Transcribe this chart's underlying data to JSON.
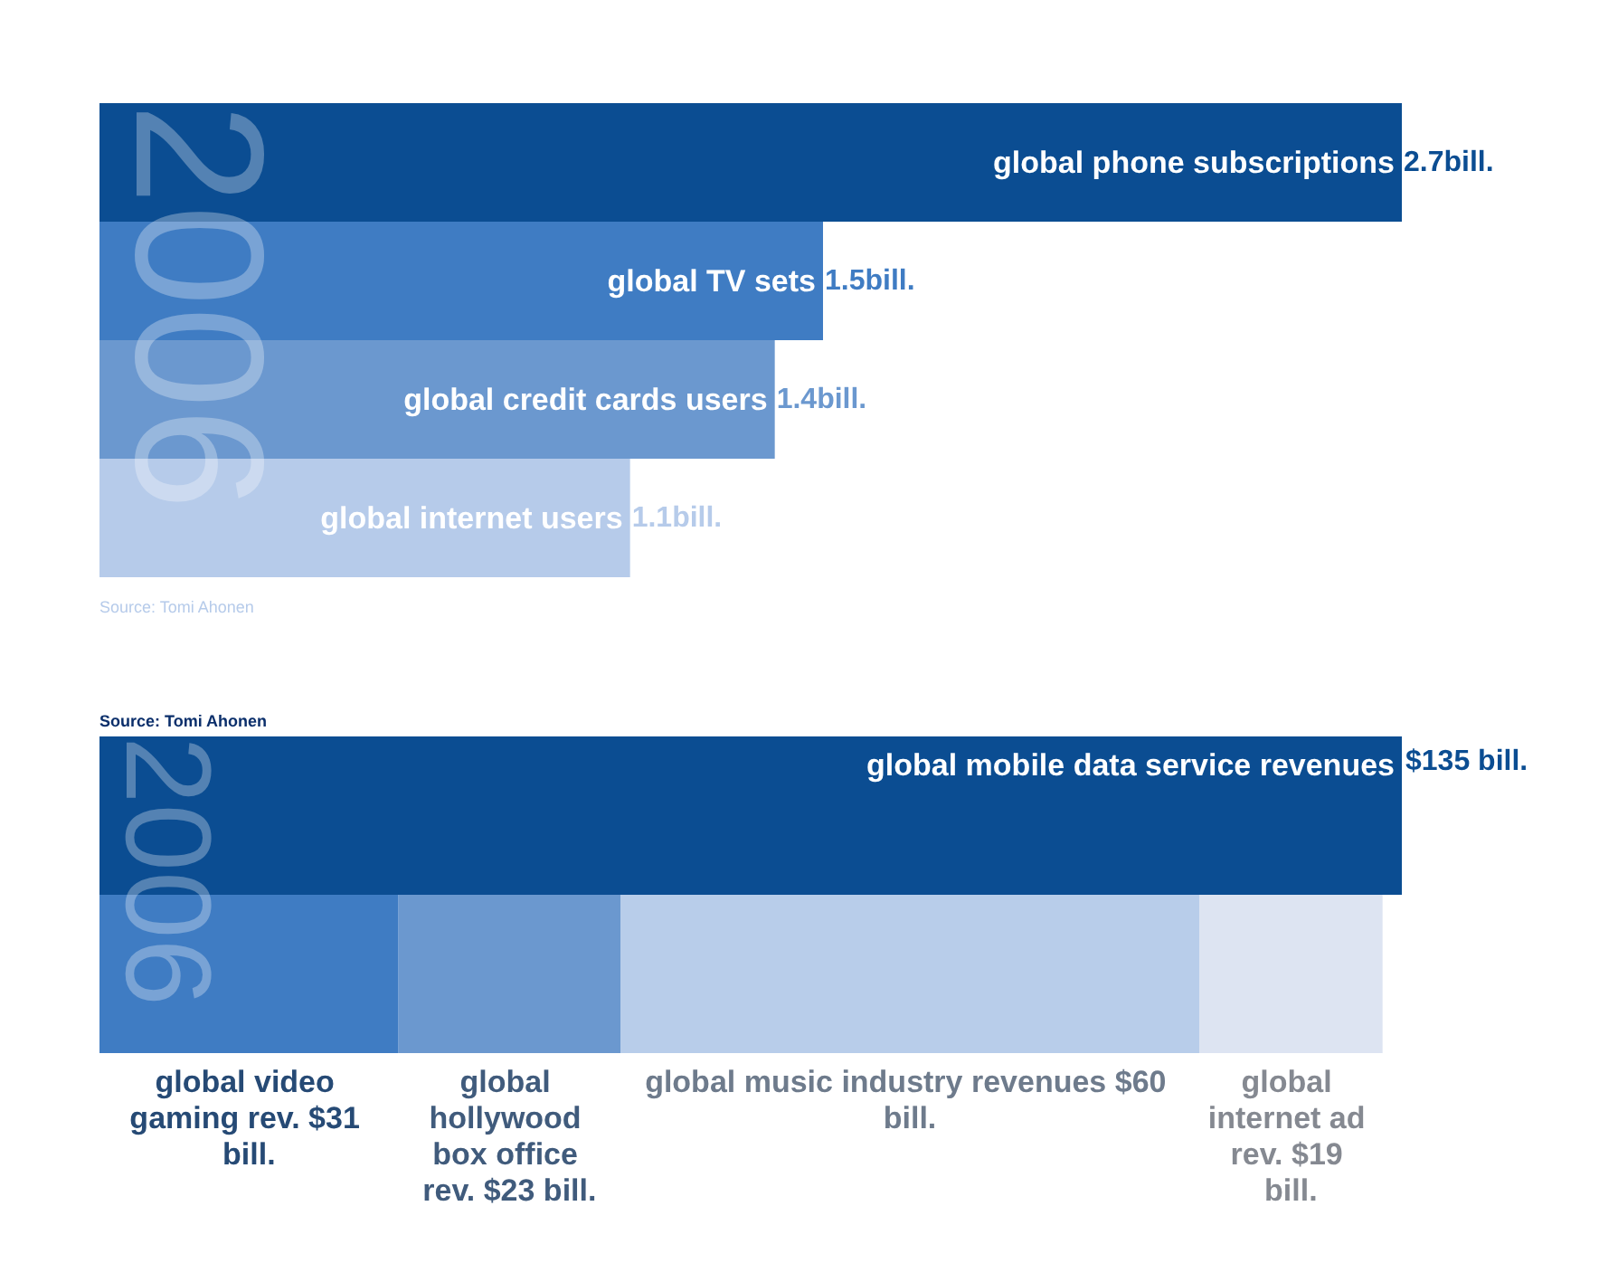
{
  "chart_data": [
    {
      "type": "bar",
      "orientation": "horizontal",
      "categories": [
        "global phone subscriptions",
        "global TV sets",
        "global credit cards users",
        "global internet users"
      ],
      "values": [
        2.7,
        1.5,
        1.4,
        1.1
      ],
      "value_labels": [
        "2.7bill.",
        "1.5bill.",
        "1.4bill.",
        "1.1bill."
      ],
      "colors": [
        "#0b4d92",
        "#3f7cc3",
        "#6b98cf",
        "#b6cbea"
      ],
      "annotations": [
        "2006",
        "Source: Tomi Ahonen"
      ]
    },
    {
      "type": "bar",
      "orientation": "horizontal",
      "stacked": true,
      "categories": [
        null,
        null
      ],
      "series": [
        {
          "name": "global mobile data service revenues",
          "color": "#0b4d92",
          "values": [
            135,
            null
          ],
          "value_labels": [
            "$135 bill.",
            null
          ]
        },
        {
          "name": "global video gaming rev.",
          "color": "#3f7cc3",
          "values": [
            null,
            31
          ],
          "value_labels": [
            null,
            "$31 bill."
          ]
        },
        {
          "name": "global hollywood box office rev.",
          "color": "#6b98cf",
          "values": [
            null,
            23
          ],
          "value_labels": [
            null,
            "$23 bill."
          ]
        },
        {
          "name": "global music industry revenues",
          "color": "#b8cdea",
          "values": [
            null,
            60
          ],
          "value_labels": [
            null,
            "$60 bill."
          ]
        },
        {
          "name": "global internet ad rev.",
          "color": "#dde4f2",
          "values": [
            null,
            19
          ],
          "value_labels": [
            null,
            "$19 bill."
          ]
        }
      ],
      "annotations": [
        "2006",
        "Source: Tomi Ahonen"
      ]
    }
  ]
}
